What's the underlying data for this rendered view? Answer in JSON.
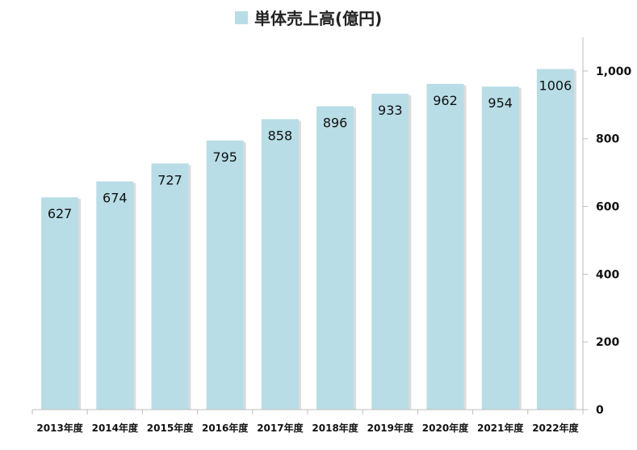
{
  "chart_data": {
    "type": "bar",
    "legend": [
      {
        "name": "単体売上高(億円)",
        "color": "#b8dde6"
      }
    ],
    "legend_position": "top-center",
    "categories": [
      "2013年度",
      "2014年度",
      "2015年度",
      "2016年度",
      "2017年度",
      "2018年度",
      "2019年度",
      "2020年度",
      "2021年度",
      "2022年度"
    ],
    "series": [
      {
        "name": "単体売上高(億円)",
        "color": "#b8dde6",
        "values": [
          627,
          674,
          727,
          795,
          858,
          896,
          933,
          962,
          954,
          1006
        ],
        "labels": [
          "627",
          "674",
          "727",
          "795",
          "858",
          "896",
          "933",
          "962",
          "954",
          "1006"
        ]
      }
    ],
    "y_axis": {
      "position": "right",
      "min": 0,
      "max": 1100,
      "ticks": [
        {
          "value": 0,
          "label": "0"
        },
        {
          "value": 200,
          "label": "200"
        },
        {
          "value": 400,
          "label": "400"
        },
        {
          "value": 600,
          "label": "600"
        },
        {
          "value": 800,
          "label": "800"
        },
        {
          "value": 1000,
          "label": "1,000"
        }
      ]
    },
    "grid": false
  }
}
